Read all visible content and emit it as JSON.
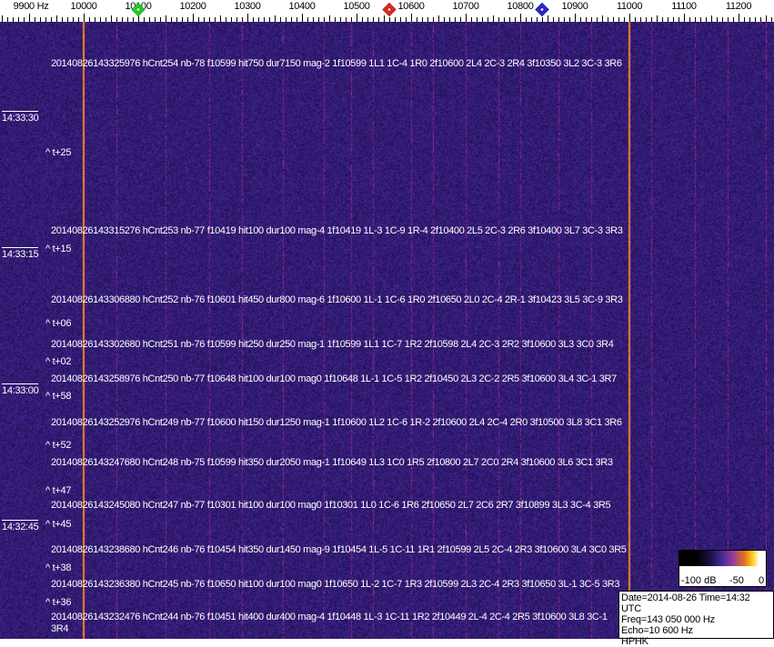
{
  "axis": {
    "unit_label": "9900 Hz",
    "labels": [
      "10000",
      "10100",
      "10200",
      "10300",
      "10400",
      "10500",
      "10600",
      "10700",
      "10800",
      "10900",
      "11000",
      "11100",
      "11200"
    ],
    "markers": [
      {
        "name": "green-marker",
        "freq_hz": 10100,
        "color": "#22c022"
      },
      {
        "name": "red-marker",
        "freq_hz": 10560,
        "color": "#d02020"
      },
      {
        "name": "blue-marker",
        "freq_hz": 10840,
        "color": "#2020c0"
      }
    ]
  },
  "time_labels": [
    "14:33:30",
    "14:33:15",
    "14:33:00",
    "14:32:45"
  ],
  "offsets": [
    "^ t+25",
    "^ t+15",
    "^ t+06",
    "^ t+02",
    "^ t+58",
    "^ t+52",
    "^ t+47",
    "^ t+45",
    "^ t+38",
    "^ t+36"
  ],
  "records": [
    "20140826143325976 hCnt254 nb-78 f10599 hit750 dur7150 mag-2 1f10599 1L1 1C-4 1R0 2f10600 2L4 2C-3 2R4 3f10350 3L2 3C-3 3R6",
    "20140826143315276 hCnt253 nb-77 f10419 hit100 dur100 mag-4 1f10419 1L-3 1C-9 1R-4 2f10400 2L5 2C-3 2R6 3f10400 3L7 3C-3 3R3",
    "20140826143306880 hCnt252 nb-76 f10601 hit450 dur800 mag-6 1f10600 1L-1 1C-6 1R0 2f10650 2L0 2C-4 2R-1 3f10423 3L5 3C-9 3R3",
    "20140826143302680 hCnt251 nb-76 f10599 hit250 dur250 mag-1 1f10599 1L1 1C-7 1R2 2f10598 2L4 2C-3 2R2 3f10600 3L3 3C0 3R4",
    "20140826143258976 hCnt250 nb-77 f10648 hit100 dur100 mag0 1f10648 1L-1 1C-5 1R2 2f10450 2L3 2C-2 2R5 3f10600 3L4 3C-1 3R7",
    "20140826143252976 hCnt249 nb-77 f10600 hit150 dur1250 mag-1 1f10600 1L2 1C-6 1R-2 2f10600 2L4 2C-4 2R0 3f10500 3L8 3C1 3R6",
    "20140826143247680 hCnt248 nb-75 f10599 hit350 dur2050 mag-1 1f10649 1L3 1C0 1R5 2f10800 2L7 2C0 2R4 3f10600 3L6 3C1 3R3",
    "20140826143245080 hCnt247 nb-77 f10301 hit100 dur100 mag0 1f10301 1L0 1C-6 1R6 2f10650 2L7 2C6 2R7 3f10899 3L3 3C-4 3R5",
    "20140826143238680 hCnt246 nb-76 f10454 hit350 dur1450 mag-9 1f10454 1L-5 1C-11 1R1 2f10599 2L5 2C-4 2R3 3f10600 3L4 3C0 3R5",
    "20140826143236380 hCnt245 nb-76 f10650 hit100 dur100 mag0 1f10650 1L-2 1C-7 1R3 2f10599 2L3 2C-4 2R3 3f10650 3L-1 3C-5 3R3",
    "20140826143232476 hCnt244 nb-76 f10451 hit400 dur400 mag-4 1f10448 1L-3 1C-11 1R2 2f10449 2L-4 2C-4 2R5 3f10600 3L8 3C-1 3R4"
  ],
  "colorbar": {
    "min_label": "-100 dB",
    "mid_label": "-50",
    "max_label": "0"
  },
  "info": {
    "date_time": "Date=2014-08-26 Time=14:32 UTC",
    "freq": "Freq=143 050 000 Hz",
    "echo": "Echo=10 600 Hz",
    "station": "HPHK"
  },
  "colors": {
    "background": "#2a1a6e",
    "strong_line": "#f08a30",
    "weak_line": "#8a3a9a"
  }
}
